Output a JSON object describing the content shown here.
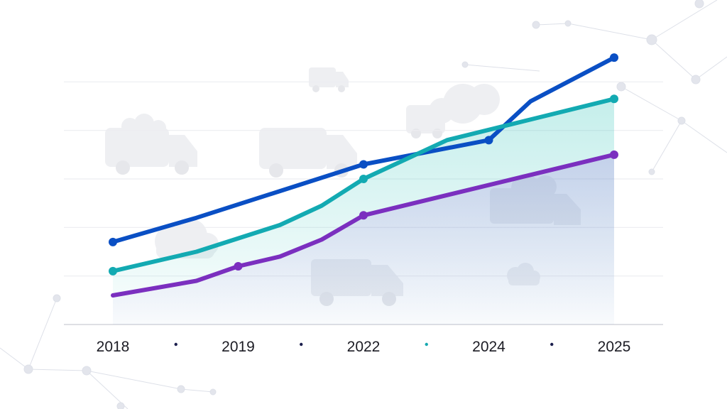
{
  "chart_data": {
    "type": "line",
    "title": "",
    "xlabel": "",
    "ylabel": "",
    "categories": [
      "2018",
      "2019",
      "2022",
      "2024",
      "2025"
    ],
    "legend_dot_colors": [
      "#1b1f4d",
      "#1b1f4d",
      "#16a8b0",
      "#1b1f4d"
    ],
    "series": [
      {
        "color": "#0a4fc4",
        "points": [
          {
            "x": 2018.0,
            "y": 34
          },
          {
            "x": 2019.0,
            "y": 44
          },
          {
            "x": 2020.0,
            "y": 55
          },
          {
            "x": 2021.0,
            "y": 66
          },
          {
            "x": 2022.5,
            "y": 76
          },
          {
            "x": 2023.0,
            "y": 92
          },
          {
            "x": 2024.0,
            "y": 110
          }
        ]
      },
      {
        "color": "#13aab2",
        "points": [
          {
            "x": 2018.0,
            "y": 22
          },
          {
            "x": 2019.0,
            "y": 30
          },
          {
            "x": 2020.0,
            "y": 41
          },
          {
            "x": 2020.5,
            "y": 49
          },
          {
            "x": 2021.0,
            "y": 60
          },
          {
            "x": 2022.0,
            "y": 76
          },
          {
            "x": 2024.0,
            "y": 93
          }
        ],
        "area": true
      },
      {
        "color": "#7b2fbf",
        "points": [
          {
            "x": 2018.0,
            "y": 12
          },
          {
            "x": 2019.0,
            "y": 18
          },
          {
            "x": 2019.5,
            "y": 24
          },
          {
            "x": 2020.0,
            "y": 28
          },
          {
            "x": 2020.5,
            "y": 35
          },
          {
            "x": 2021.0,
            "y": 45
          },
          {
            "x": 2024.0,
            "y": 70
          }
        ],
        "area": true
      }
    ],
    "xlim": [
      2018,
      2024
    ],
    "ylim": [
      0,
      120
    ],
    "grid": true,
    "legend": "none"
  }
}
